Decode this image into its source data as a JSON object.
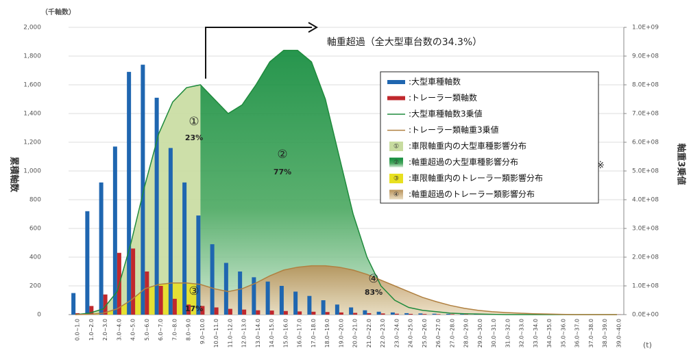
{
  "chart_data": {
    "type": "bar",
    "y_unit": "（千軸数）",
    "ylabel": "累積軸数",
    "y2label": "軸重3乗値",
    "xlabel": "(t)",
    "title": "軸重超過（全大型車台数の34.3%）",
    "note": "※",
    "annotations": [
      "①",
      "23%",
      "②",
      "77%",
      "③",
      "17%",
      "④",
      "83%"
    ],
    "categories": [
      "0.0~1.0",
      "1.0~2.0",
      "2.0~3.0",
      "3.0~4.0",
      "4.0~5.0",
      "5.0~6.0",
      "6.0~7.0",
      "7.0~8.0",
      "8.0~9.0",
      "9.0~10.0",
      "10.0~11.0",
      "11.0~12.0",
      "12.0~13.0",
      "13.0~14.0",
      "14.0~15.0",
      "15.0~16.0",
      "16.0~17.0",
      "17.0~18.0",
      "18.0~19.0",
      "19.0~20.0",
      "20.0~21.0",
      "21.0~22.0",
      "22.0~23.0",
      "23.0~24.0",
      "24.0~25.0",
      "25.0~26.0",
      "26.0~27.0",
      "27.0~28.0",
      "28.0~29.0",
      "29.0~30.0",
      "30.0~31.0",
      "31.0~32.0",
      "32.0~33.0",
      "33.0~34.0",
      "34.0~35.0",
      "35.0~36.0",
      "36.0~37.0",
      "37.0~38.0",
      "38.0~39.0",
      "39.0~40.0"
    ],
    "series": [
      {
        "name": ":大型車種軸数",
        "color": "#1f66b0",
        "kind": "bar",
        "values": [
          150,
          720,
          920,
          1170,
          1690,
          1740,
          1510,
          1160,
          920,
          690,
          490,
          360,
          300,
          260,
          230,
          200,
          160,
          130,
          100,
          70,
          50,
          30,
          20,
          15,
          10,
          8,
          6,
          5,
          4,
          3,
          3,
          2,
          2,
          2,
          1,
          1,
          1,
          1,
          1,
          1
        ]
      },
      {
        "name": ":トレーラー類軸数",
        "color": "#c0282d",
        "kind": "bar",
        "values": [
          10,
          60,
          140,
          430,
          460,
          300,
          200,
          110,
          70,
          60,
          50,
          40,
          35,
          30,
          28,
          25,
          22,
          20,
          18,
          15,
          12,
          10,
          8,
          6,
          5,
          4,
          3,
          3,
          2,
          2,
          1,
          1,
          1,
          1,
          1,
          1,
          1,
          1,
          1,
          1
        ]
      },
      {
        "name": ":大型車種軸数3乗値",
        "color": "#1e8a3c",
        "kind": "line",
        "axis": "y2",
        "values": [
          0,
          5000000,
          20000000,
          80000000,
          250000000,
          450000000,
          630000000,
          740000000,
          790000000,
          800000000,
          750000000,
          700000000,
          730000000,
          800000000,
          880000000,
          920000000,
          920000000,
          880000000,
          750000000,
          550000000,
          350000000,
          200000000,
          100000000,
          50000000,
          25000000,
          15000000,
          10000000,
          5000000,
          3000000,
          2000000,
          1000000,
          0,
          0,
          0,
          0,
          0,
          0,
          0,
          0,
          0
        ]
      },
      {
        "name": ":トレーラー類軸重3乗値",
        "color": "#b08040",
        "kind": "line",
        "axis": "y2",
        "values": [
          0,
          1000000,
          5000000,
          20000000,
          50000000,
          90000000,
          105000000,
          110000000,
          110000000,
          105000000,
          90000000,
          80000000,
          90000000,
          110000000,
          135000000,
          155000000,
          165000000,
          170000000,
          170000000,
          165000000,
          155000000,
          140000000,
          120000000,
          100000000,
          80000000,
          60000000,
          45000000,
          32000000,
          22000000,
          15000000,
          10000000,
          7000000,
          5000000,
          3000000,
          2000000,
          1000000,
          0,
          0,
          0,
          0
        ]
      }
    ],
    "areas": [
      {
        "name": ":車限軸重内の大型車種影響分布",
        "color": "#c8dca0"
      },
      {
        "name": ":軸重超過の大型車種影響分布",
        "color": "#1e8a3c"
      },
      {
        "name": ":車限軸重内のトレーラー類影響分布",
        "color": "#e8e020"
      },
      {
        "name": ":軸重超過のトレーラー類影響分布",
        "color": "#c8a070"
      }
    ],
    "ylim": [
      0,
      2000
    ],
    "yticks": [
      0,
      200,
      400,
      600,
      800,
      {
        "value": 1000,
        "label": "1,000"
      },
      {
        "value": 1200,
        "label": "1,200"
      },
      {
        "value": 1400,
        "label": "1,400"
      },
      {
        "value": 1600,
        "label": "1,600"
      },
      {
        "value": 1800,
        "label": "1,800"
      },
      {
        "value": 2000,
        "label": "2,000"
      }
    ],
    "y2lim": [
      0,
      1000000000
    ],
    "y2ticks": [
      {
        "value": 0,
        "label": "0.0E+00"
      },
      {
        "value": 100000000,
        "label": "1.0E+08"
      },
      {
        "value": 200000000,
        "label": "2.0E+08"
      },
      {
        "value": 300000000,
        "label": "3.0E+08"
      },
      {
        "value": 400000000,
        "label": "4.0E+08"
      },
      {
        "value": 500000000,
        "label": "5.0E+08"
      },
      {
        "value": 600000000,
        "label": "6.0E+08"
      },
      {
        "value": 700000000,
        "label": "7.0E+08"
      },
      {
        "value": 800000000,
        "label": "8.0E+08"
      },
      {
        "value": 900000000,
        "label": "9.0E+08"
      },
      {
        "value": 1000000000,
        "label": "1.0E+09"
      }
    ],
    "grid": true
  }
}
